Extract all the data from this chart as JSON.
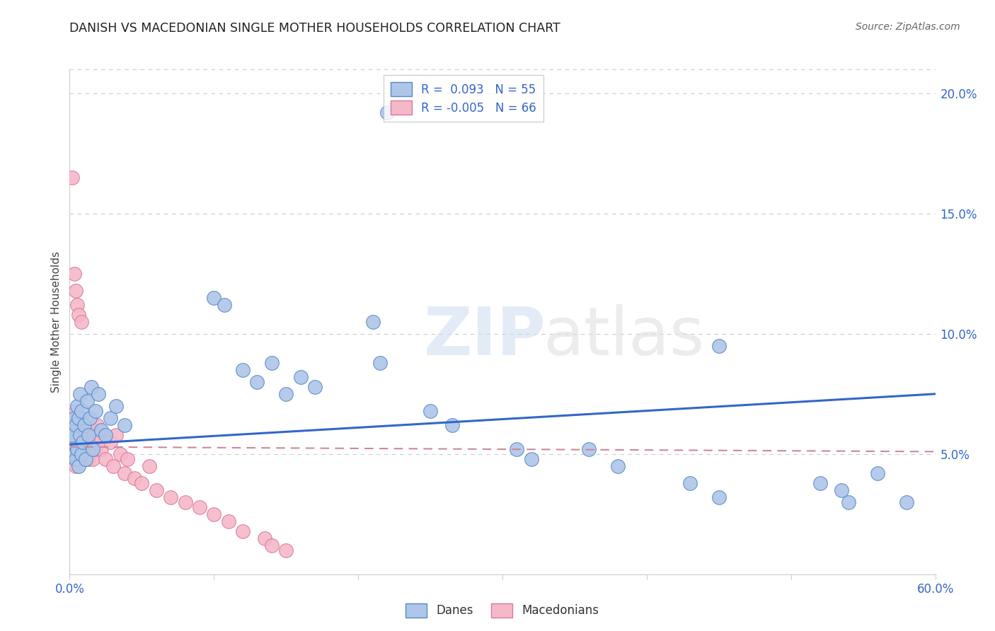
{
  "title": "DANISH VS MACEDONIAN SINGLE MOTHER HOUSEHOLDS CORRELATION CHART",
  "source": "Source: ZipAtlas.com",
  "ylabel": "Single Mother Households",
  "xlim": [
    0.0,
    0.6
  ],
  "ylim": [
    0.0,
    0.21
  ],
  "xtick_vals": [
    0.0,
    0.1,
    0.2,
    0.3,
    0.4,
    0.5,
    0.6
  ],
  "xtick_labels": [
    "0.0%",
    "",
    "",
    "",
    "",
    "",
    "60.0%"
  ],
  "ytick_vals": [
    0.05,
    0.1,
    0.15,
    0.2
  ],
  "ytick_labels": [
    "5.0%",
    "10.0%",
    "15.0%",
    "20.0%"
  ],
  "blue_face": "#aec6e8",
  "blue_edge": "#5588cc",
  "pink_face": "#f5b8c8",
  "pink_edge": "#dd7799",
  "blue_line": "#3366cc",
  "pink_line": "#cc8899",
  "grid_color": "#cccccc",
  "blue_trend_x": [
    0.0,
    0.6
  ],
  "blue_trend_y": [
    0.054,
    0.075
  ],
  "pink_trend_x": [
    0.0,
    0.6
  ],
  "pink_trend_y": [
    0.053,
    0.051
  ],
  "danes_x": [
    0.001,
    0.002,
    0.002,
    0.003,
    0.003,
    0.004,
    0.004,
    0.005,
    0.005,
    0.006,
    0.006,
    0.007,
    0.007,
    0.008,
    0.008,
    0.009,
    0.01,
    0.011,
    0.012,
    0.013,
    0.014,
    0.015,
    0.016,
    0.018,
    0.02,
    0.022,
    0.025,
    0.028,
    0.032,
    0.038,
    0.1,
    0.107,
    0.12,
    0.13,
    0.14,
    0.15,
    0.16,
    0.17,
    0.21,
    0.215,
    0.25,
    0.265,
    0.31,
    0.32,
    0.36,
    0.38,
    0.43,
    0.45,
    0.52,
    0.54,
    0.22,
    0.45,
    0.535,
    0.56,
    0.58
  ],
  "danes_y": [
    0.06,
    0.055,
    0.058,
    0.065,
    0.05,
    0.062,
    0.048,
    0.07,
    0.052,
    0.065,
    0.045,
    0.075,
    0.058,
    0.068,
    0.05,
    0.055,
    0.062,
    0.048,
    0.072,
    0.058,
    0.065,
    0.078,
    0.052,
    0.068,
    0.075,
    0.06,
    0.058,
    0.065,
    0.07,
    0.062,
    0.115,
    0.112,
    0.085,
    0.08,
    0.088,
    0.075,
    0.082,
    0.078,
    0.105,
    0.088,
    0.068,
    0.062,
    0.052,
    0.048,
    0.052,
    0.045,
    0.038,
    0.032,
    0.038,
    0.03,
    0.192,
    0.095,
    0.035,
    0.042,
    0.03
  ],
  "mace_x": [
    0.001,
    0.001,
    0.002,
    0.002,
    0.002,
    0.003,
    0.003,
    0.003,
    0.004,
    0.004,
    0.004,
    0.005,
    0.005,
    0.005,
    0.006,
    0.006,
    0.006,
    0.007,
    0.007,
    0.008,
    0.008,
    0.009,
    0.009,
    0.01,
    0.01,
    0.011,
    0.011,
    0.012,
    0.012,
    0.013,
    0.013,
    0.014,
    0.015,
    0.015,
    0.016,
    0.017,
    0.018,
    0.019,
    0.02,
    0.022,
    0.025,
    0.028,
    0.03,
    0.032,
    0.035,
    0.038,
    0.04,
    0.045,
    0.05,
    0.055,
    0.06,
    0.07,
    0.08,
    0.09,
    0.1,
    0.11,
    0.12,
    0.135,
    0.14,
    0.15,
    0.002,
    0.003,
    0.004,
    0.005,
    0.006,
    0.008
  ],
  "mace_y": [
    0.055,
    0.062,
    0.048,
    0.058,
    0.052,
    0.065,
    0.05,
    0.06,
    0.055,
    0.068,
    0.045,
    0.06,
    0.052,
    0.058,
    0.048,
    0.065,
    0.055,
    0.06,
    0.05,
    0.058,
    0.065,
    0.052,
    0.06,
    0.055,
    0.048,
    0.062,
    0.058,
    0.05,
    0.055,
    0.06,
    0.048,
    0.052,
    0.06,
    0.055,
    0.048,
    0.058,
    0.052,
    0.062,
    0.058,
    0.052,
    0.048,
    0.055,
    0.045,
    0.058,
    0.05,
    0.042,
    0.048,
    0.04,
    0.038,
    0.045,
    0.035,
    0.032,
    0.03,
    0.028,
    0.025,
    0.022,
    0.018,
    0.015,
    0.012,
    0.01,
    0.165,
    0.125,
    0.118,
    0.112,
    0.108,
    0.105
  ]
}
